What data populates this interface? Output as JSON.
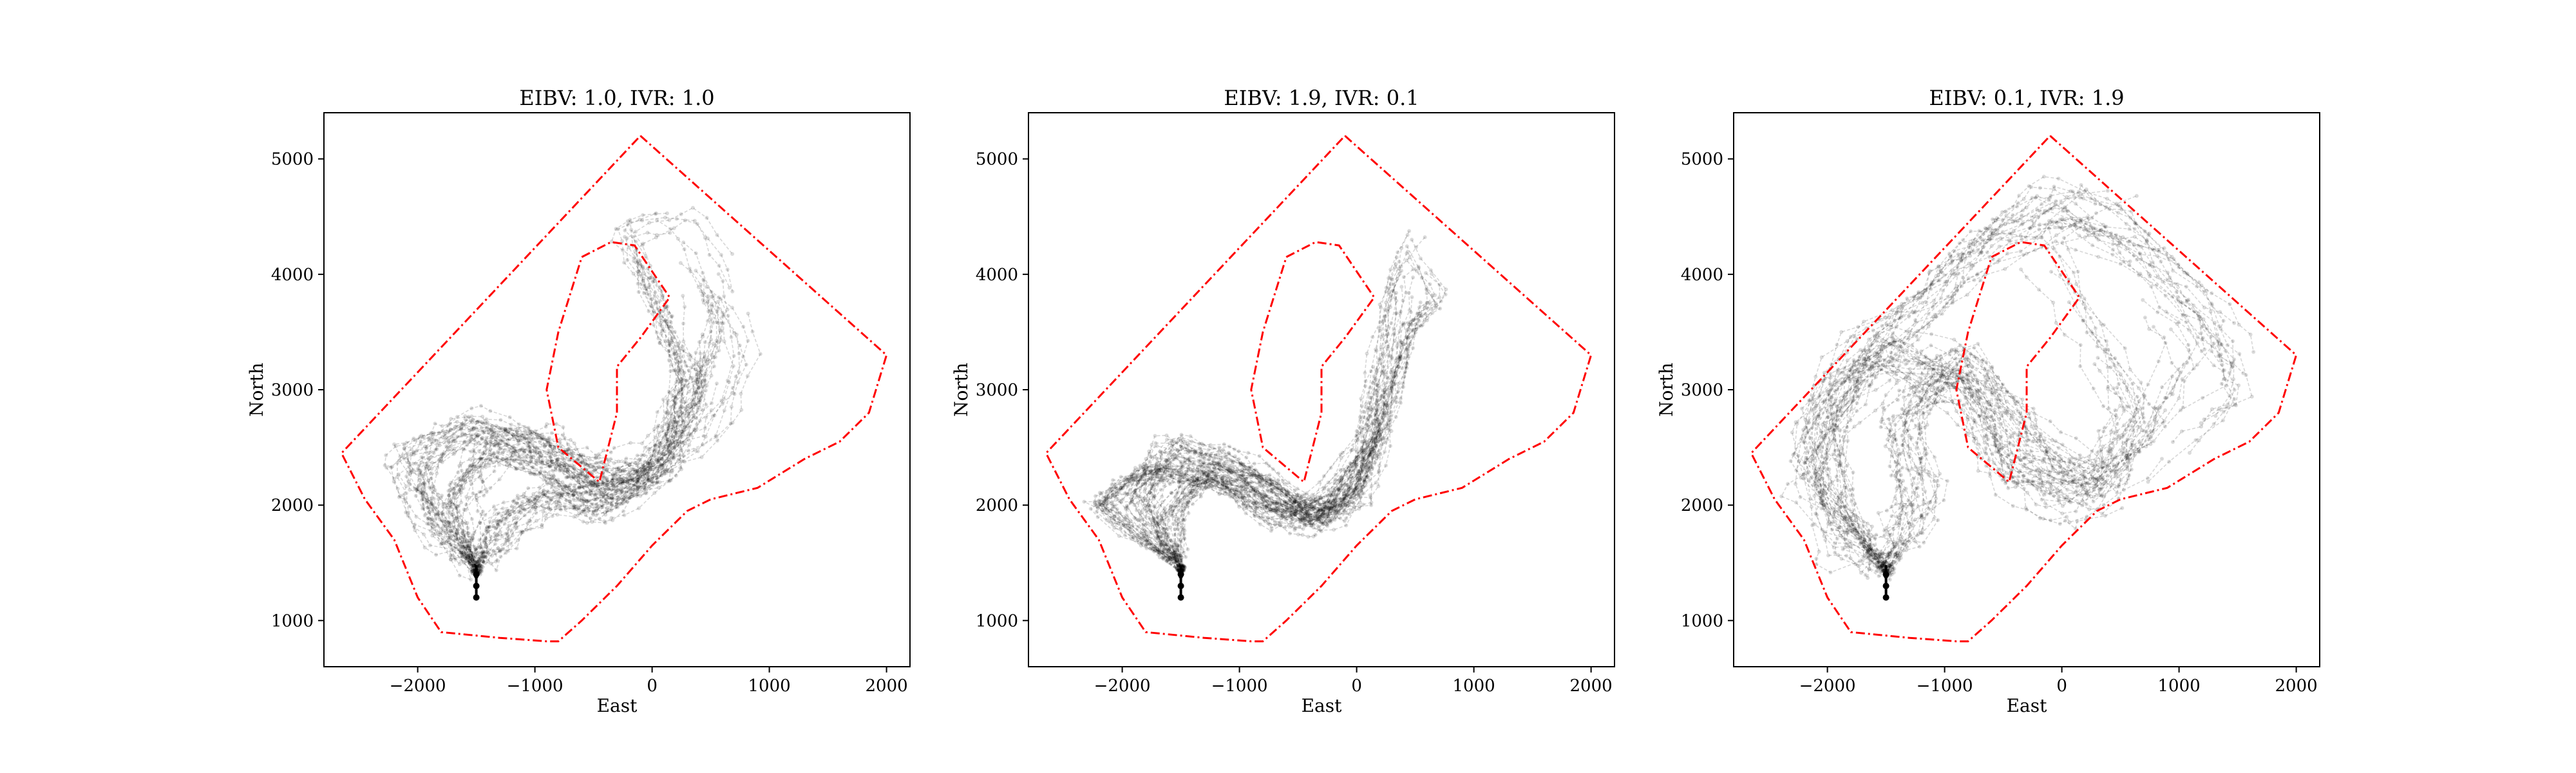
{
  "chart_data": [
    {
      "type": "scatter",
      "title": "EIBV: 1.0, IVR: 1.0",
      "xlabel": "East",
      "ylabel": "North",
      "xlim": [
        -2800,
        2200
      ],
      "ylim": [
        600,
        5400
      ],
      "xticks": [
        -2000,
        -1000,
        0,
        1000,
        2000
      ],
      "yticks": [
        1000,
        2000,
        3000,
        4000,
        5000
      ],
      "xtick_labels": [
        "−2000",
        "−1000",
        "0",
        "1000",
        "2000"
      ],
      "ytick_labels": [
        "1000",
        "2000",
        "3000",
        "4000",
        "5000"
      ],
      "grid": false,
      "series": [
        {
          "kind": "boundary",
          "color": "#ff0000",
          "style": "dash-dot",
          "x": [
            -100,
            2000,
            1850,
            1600,
            1300,
            900,
            500,
            300,
            0,
            -300,
            -600,
            -800,
            -900,
            -1300,
            -1800,
            -2000,
            -2200,
            -2450,
            -2650,
            -100
          ],
          "y": [
            5200,
            3300,
            2800,
            2550,
            2400,
            2150,
            2050,
            1950,
            1650,
            1300,
            1000,
            820,
            820,
            850,
            900,
            1200,
            1700,
            2050,
            2450,
            5200
          ]
        },
        {
          "kind": "island",
          "color": "#ff0000",
          "style": "dash-dot",
          "x": [
            -600,
            -350,
            -150,
            150,
            -100,
            -300,
            -300,
            -450,
            -800,
            -900,
            -800,
            -600
          ],
          "y": [
            4150,
            4280,
            4250,
            3800,
            3450,
            3200,
            2800,
            2200,
            2500,
            3000,
            3500,
            4150
          ]
        },
        {
          "kind": "trajectories",
          "color": "#000000",
          "start": [
            -1500,
            1200
          ],
          "region": "upper-left lobe and right channel, balanced"
        }
      ]
    },
    {
      "type": "scatter",
      "title": "EIBV: 1.9, IVR: 0.1",
      "xlabel": "East",
      "ylabel": "North",
      "xlim": [
        -2800,
        2200
      ],
      "ylim": [
        600,
        5400
      ],
      "xticks": [
        -2000,
        -1000,
        0,
        1000,
        2000
      ],
      "yticks": [
        1000,
        2000,
        3000,
        4000,
        5000
      ],
      "xtick_labels": [
        "−2000",
        "−1000",
        "0",
        "1000",
        "2000"
      ],
      "ytick_labels": [
        "1000",
        "2000",
        "3000",
        "4000",
        "5000"
      ],
      "grid": false,
      "series": [
        {
          "kind": "boundary",
          "color": "#ff0000",
          "style": "dash-dot",
          "x": [
            -100,
            2000,
            1850,
            1600,
            1300,
            900,
            500,
            300,
            0,
            -300,
            -600,
            -800,
            -900,
            -1300,
            -1800,
            -2000,
            -2200,
            -2450,
            -2650,
            -100
          ],
          "y": [
            5200,
            3300,
            2800,
            2550,
            2400,
            2150,
            2050,
            1950,
            1650,
            1300,
            1000,
            820,
            820,
            850,
            900,
            1200,
            1700,
            2050,
            2450,
            5200
          ]
        },
        {
          "kind": "island",
          "color": "#ff0000",
          "style": "dash-dot",
          "x": [
            -600,
            -350,
            -150,
            150,
            -100,
            -300,
            -300,
            -450,
            -800,
            -900,
            -800,
            -600
          ],
          "y": [
            4150,
            4280,
            4250,
            3800,
            3450,
            3200,
            2800,
            2200,
            2500,
            3000,
            3500,
            4150
          ]
        },
        {
          "kind": "trajectories",
          "color": "#000000",
          "start": [
            -1500,
            1200
          ],
          "region": "lower band then narrow channel east of island"
        }
      ]
    },
    {
      "type": "scatter",
      "title": "EIBV: 0.1, IVR: 1.9",
      "xlabel": "East",
      "ylabel": "North",
      "xlim": [
        -2800,
        2200
      ],
      "ylim": [
        600,
        5400
      ],
      "xticks": [
        -2000,
        -1000,
        0,
        1000,
        2000
      ],
      "yticks": [
        1000,
        2000,
        3000,
        4000,
        5000
      ],
      "xtick_labels": [
        "−2000",
        "−1000",
        "0",
        "1000",
        "2000"
      ],
      "ytick_labels": [
        "1000",
        "2000",
        "3000",
        "4000",
        "5000"
      ],
      "grid": false,
      "series": [
        {
          "kind": "boundary",
          "color": "#ff0000",
          "style": "dash-dot",
          "x": [
            -100,
            2000,
            1850,
            1600,
            1300,
            900,
            500,
            300,
            0,
            -300,
            -600,
            -800,
            -900,
            -1300,
            -1800,
            -2000,
            -2200,
            -2450,
            -2650,
            -100
          ],
          "y": [
            5200,
            3300,
            2800,
            2550,
            2400,
            2150,
            2050,
            1950,
            1650,
            1300,
            1000,
            820,
            820,
            850,
            900,
            1200,
            1700,
            2050,
            2450,
            5200
          ]
        },
        {
          "kind": "island",
          "color": "#ff0000",
          "style": "dash-dot",
          "x": [
            -600,
            -350,
            -150,
            150,
            -100,
            -300,
            -300,
            -450,
            -800,
            -900,
            -800,
            -600
          ],
          "y": [
            4150,
            4280,
            4250,
            3800,
            3450,
            3200,
            2800,
            2200,
            2500,
            3000,
            3500,
            4150
          ]
        },
        {
          "kind": "trajectories",
          "color": "#000000",
          "start": [
            -1500,
            1200
          ],
          "region": "spread widely across whole domain"
        }
      ]
    }
  ]
}
